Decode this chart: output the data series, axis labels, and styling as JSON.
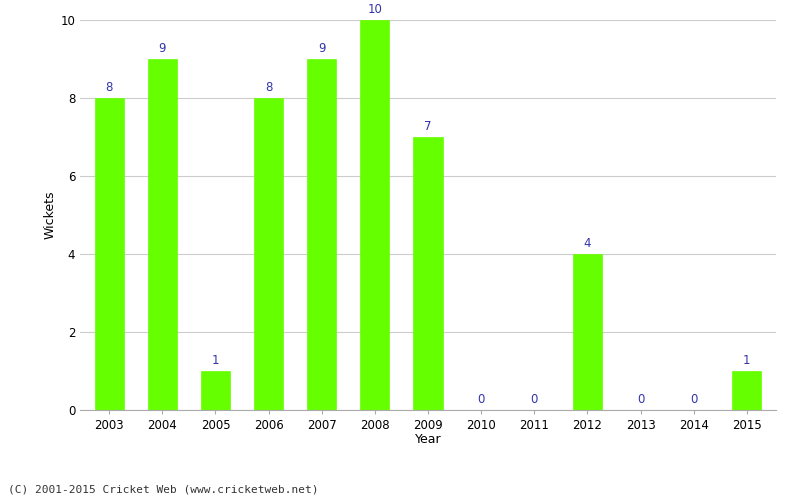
{
  "years": [
    2003,
    2004,
    2005,
    2006,
    2007,
    2008,
    2009,
    2010,
    2011,
    2012,
    2013,
    2014,
    2015
  ],
  "wickets": [
    8,
    9,
    1,
    8,
    9,
    10,
    7,
    0,
    0,
    4,
    0,
    0,
    1
  ],
  "bar_color": "#66ff00",
  "bar_edge_color": "#66ff00",
  "xlabel": "Year",
  "ylabel": "Wickets",
  "ylim": [
    0,
    10
  ],
  "yticks": [
    0,
    2,
    4,
    6,
    8,
    10
  ],
  "label_color": "#3333aa",
  "label_fontsize": 8.5,
  "axis_label_fontsize": 9,
  "tick_fontsize": 8.5,
  "background_color": "#ffffff",
  "grid_color": "#cccccc",
  "footer_text": "(C) 2001-2015 Cricket Web (www.cricketweb.net)",
  "footer_fontsize": 8
}
